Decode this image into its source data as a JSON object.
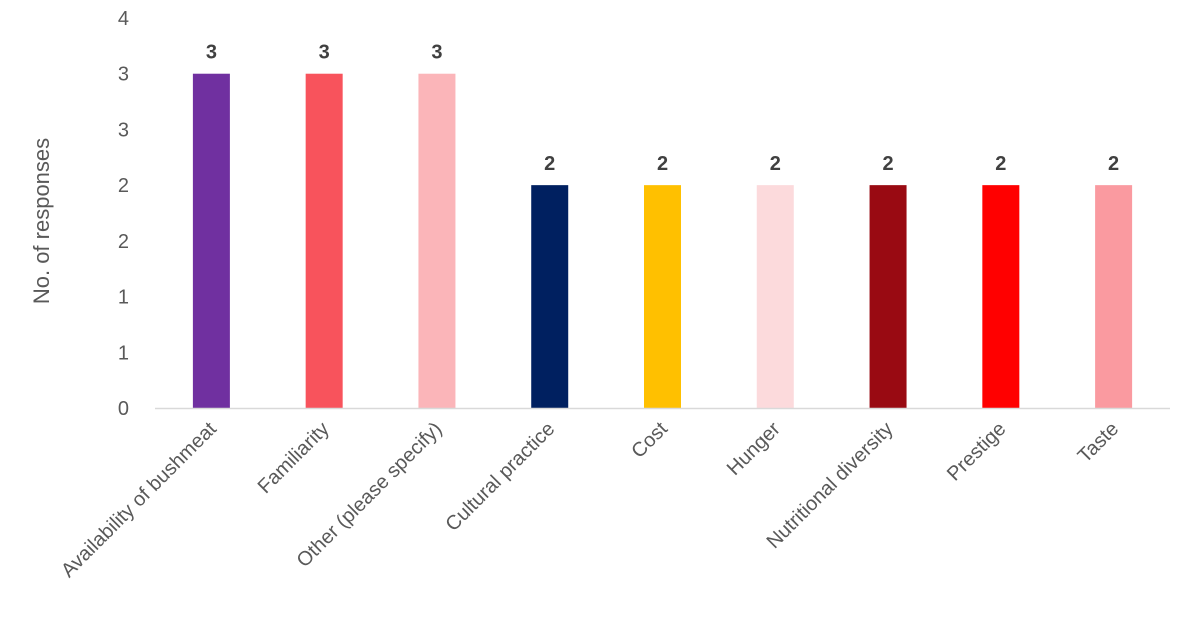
{
  "chart_data": {
    "type": "bar",
    "title": "",
    "xlabel": "",
    "ylabel": "No. of responses",
    "categories": [
      "Availability of bushmeat",
      "Familiarity",
      "Other (please specify)",
      "Cultural practice",
      "Cost",
      "Hunger",
      "Nutritional diversity",
      "Prestige",
      "Taste"
    ],
    "values": [
      3,
      3,
      3,
      2,
      2,
      2,
      2,
      2,
      2
    ],
    "data_labels": [
      "3",
      "3",
      "3",
      "2",
      "2",
      "2",
      "2",
      "2",
      "2"
    ],
    "colors": [
      "#7030A0",
      "#F8535C",
      "#FBB5B9",
      "#002060",
      "#FFC000",
      "#FCDADC",
      "#990A12",
      "#FF0000",
      "#FA9AA0"
    ],
    "ylim": [
      0,
      3.5
    ],
    "y_tick_values": [
      0,
      0.5,
      1,
      1.5,
      2,
      2.5,
      3,
      3.5
    ],
    "y_tick_labels": [
      "0",
      "1",
      "1",
      "2",
      "2",
      "3",
      "3",
      "4"
    ],
    "grid": false,
    "legend": "none"
  }
}
